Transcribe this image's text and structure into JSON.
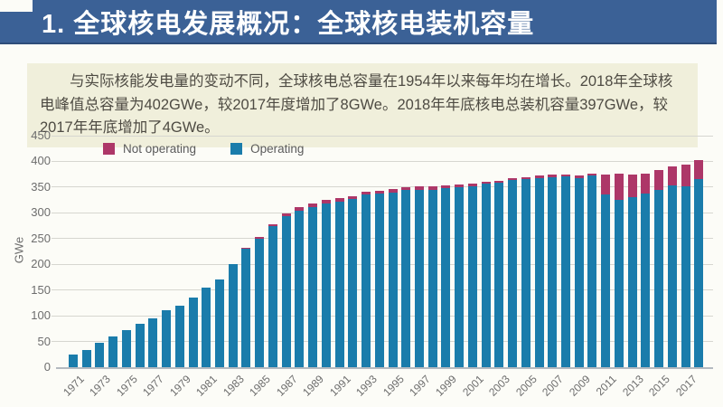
{
  "header": {
    "title": "1. 全球核电发展概况：全球核电装机容量"
  },
  "infobox": {
    "text": "与实际核能发电量的变动不同，全球核电总容量在1954年以来每年均在增长。2018年全球核电峰值总容量为402GWe，较2017年度增加了8GWe。2018年年底核电总装机容量397GWe，较2017年年底增加了4GWe。"
  },
  "colors": {
    "page_bg": "#fcfcf7",
    "header_bg": "#3b6196",
    "header_edge": "#2e4d79",
    "infobox_bg": "#f0efdb",
    "infobox_text": "#4e4b43",
    "grid": "#d6d6d0",
    "not_operating": "#ad3768",
    "operating": "#1a7cab"
  },
  "chart_data": {
    "type": "bar",
    "stacked": true,
    "title": "",
    "xlabel": "",
    "ylabel": "GWe",
    "ylim": [
      0,
      450
    ],
    "ytick_step": 50,
    "grid": true,
    "legend_position": "top-left",
    "x": [
      1971,
      1972,
      1973,
      1974,
      1975,
      1976,
      1977,
      1978,
      1979,
      1980,
      1981,
      1982,
      1983,
      1984,
      1985,
      1986,
      1987,
      1988,
      1989,
      1990,
      1991,
      1992,
      1993,
      1994,
      1995,
      1996,
      1997,
      1998,
      1999,
      2000,
      2001,
      2002,
      2003,
      2004,
      2005,
      2006,
      2007,
      2008,
      2009,
      2010,
      2011,
      2012,
      2013,
      2014,
      2015,
      2016,
      2017,
      2018
    ],
    "xtick_labels": [
      "1971",
      "1973",
      "1975",
      "1977",
      "1979",
      "1981",
      "1983",
      "1985",
      "1987",
      "1989",
      "1991",
      "1993",
      "1995",
      "1997",
      "1999",
      "2001",
      "2003",
      "2005",
      "2007",
      "2009",
      "2011",
      "2013",
      "2015",
      "2017"
    ],
    "series": [
      {
        "name": "Not operating",
        "color": "#ad3768",
        "values": [
          0,
          0,
          0,
          0,
          0,
          0,
          0,
          0,
          0,
          0,
          0,
          0,
          0,
          2,
          3,
          3,
          5,
          6,
          6,
          7,
          6,
          6,
          5,
          5,
          6,
          5,
          6,
          7,
          5,
          5,
          5,
          4,
          5,
          4,
          4,
          4,
          4,
          4,
          5,
          4,
          40,
          52,
          44,
          38,
          38,
          37,
          42,
          37
        ]
      },
      {
        "name": "Operating",
        "color": "#1a7cab",
        "values": [
          24,
          34,
          48,
          60,
          72,
          85,
          95,
          110,
          120,
          135,
          155,
          170,
          200,
          230,
          250,
          275,
          293,
          305,
          312,
          318,
          322,
          327,
          336,
          338,
          340,
          345,
          345,
          345,
          348,
          350,
          352,
          357,
          358,
          364,
          366,
          368,
          370,
          371,
          368,
          372,
          335,
          325,
          331,
          338,
          345,
          353,
          352,
          365
        ]
      }
    ]
  }
}
